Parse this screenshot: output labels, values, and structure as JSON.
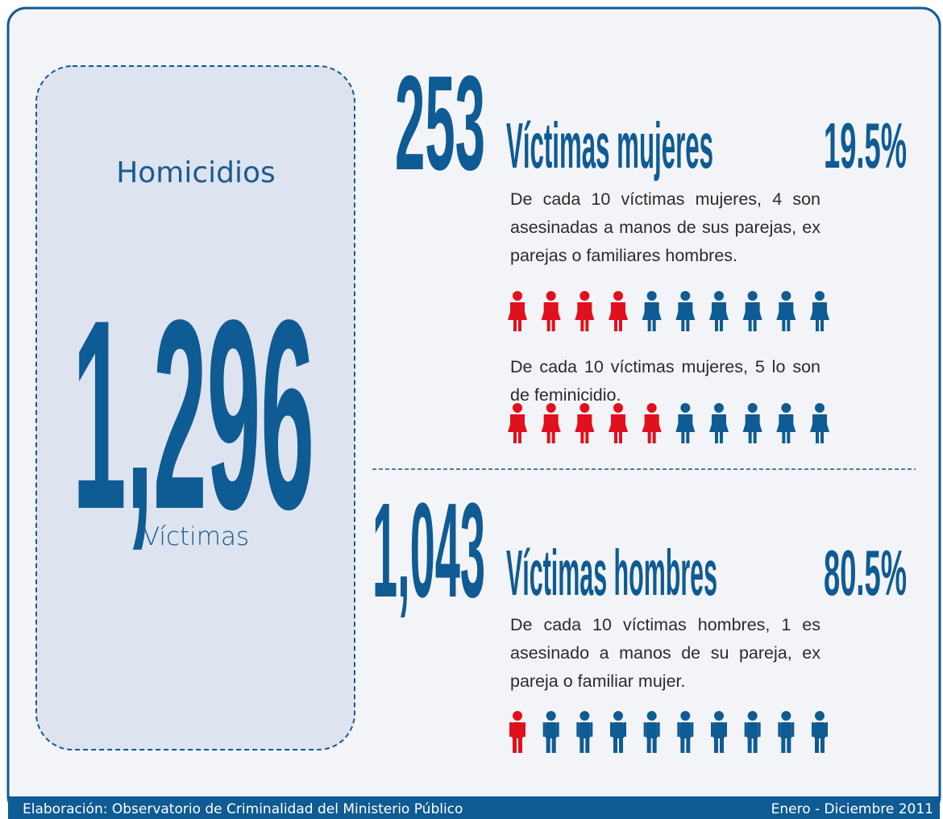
{
  "summary": {
    "title": "Homicidios",
    "total": "1,296",
    "unit": "Víctimas"
  },
  "women": {
    "count": "253",
    "label": "Víctimas mujeres",
    "percent": "19.5%",
    "figure": "woman",
    "color": "#0f5b93",
    "highlight_color": "#e0111d",
    "facts": [
      {
        "text": "De cada 10 víctimas mujeres, 4 son asesinadas a manos de sus parejas, ex parejas o familiares hombres.",
        "icons": 10,
        "highlighted": 4
      },
      {
        "text": "De cada 10 víctimas mujeres, 5 lo son de feminicidio.",
        "icons": 10,
        "highlighted": 5
      }
    ]
  },
  "men": {
    "count": "1,043",
    "label": "Víctimas hombres",
    "percent": "80.5%",
    "figure": "man",
    "color": "#0f5b93",
    "highlight_color": "#e0111d",
    "facts": [
      {
        "text": "De cada 10 víctimas hombres, 1 es asesinado a manos de su pareja, ex pareja o familiar mujer.",
        "icons": 10,
        "highlighted": 1
      }
    ]
  },
  "footer": {
    "source": "Elaboración: Observatorio de Criminalidad del Ministerio Público",
    "period": "Enero - Diciembre 2011"
  }
}
